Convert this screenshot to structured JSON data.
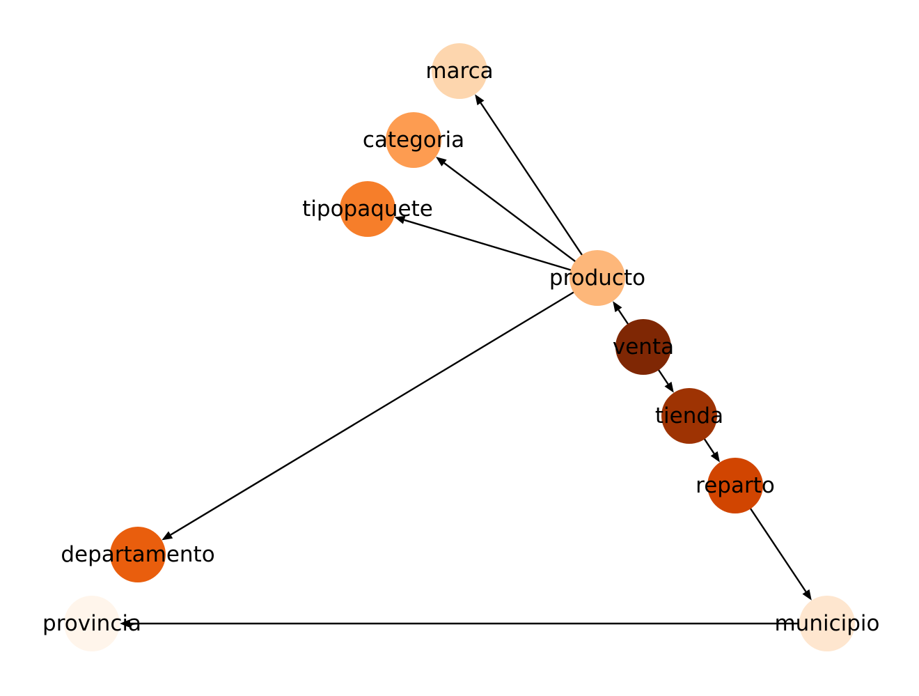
{
  "graph": {
    "nodes": [
      {
        "id": "marca",
        "label": "marca",
        "color": "#fdd6ae"
      },
      {
        "id": "categoria",
        "label": "categoria",
        "color": "#fd9c51"
      },
      {
        "id": "tipopaquete",
        "label": "tipopaquete",
        "color": "#f67e2a"
      },
      {
        "id": "producto",
        "label": "producto",
        "color": "#fdb77a"
      },
      {
        "id": "venta",
        "label": "venta",
        "color": "#7f2704"
      },
      {
        "id": "tienda",
        "label": "tienda",
        "color": "#9e3303"
      },
      {
        "id": "reparto",
        "label": "reparto",
        "color": "#d14501"
      },
      {
        "id": "departamento",
        "label": "departamento",
        "color": "#e95e0d"
      },
      {
        "id": "provincia",
        "label": "provincia",
        "color": "#fff5eb"
      },
      {
        "id": "municipio",
        "label": "municipio",
        "color": "#fee6cf"
      }
    ],
    "edges": [
      {
        "from": "producto",
        "to": "marca"
      },
      {
        "from": "producto",
        "to": "categoria"
      },
      {
        "from": "producto",
        "to": "tipopaquete"
      },
      {
        "from": "producto",
        "to": "departamento"
      },
      {
        "from": "venta",
        "to": "producto"
      },
      {
        "from": "venta",
        "to": "tienda"
      },
      {
        "from": "tienda",
        "to": "reparto"
      },
      {
        "from": "reparto",
        "to": "municipio"
      },
      {
        "from": "municipio",
        "to": "provincia"
      }
    ]
  }
}
